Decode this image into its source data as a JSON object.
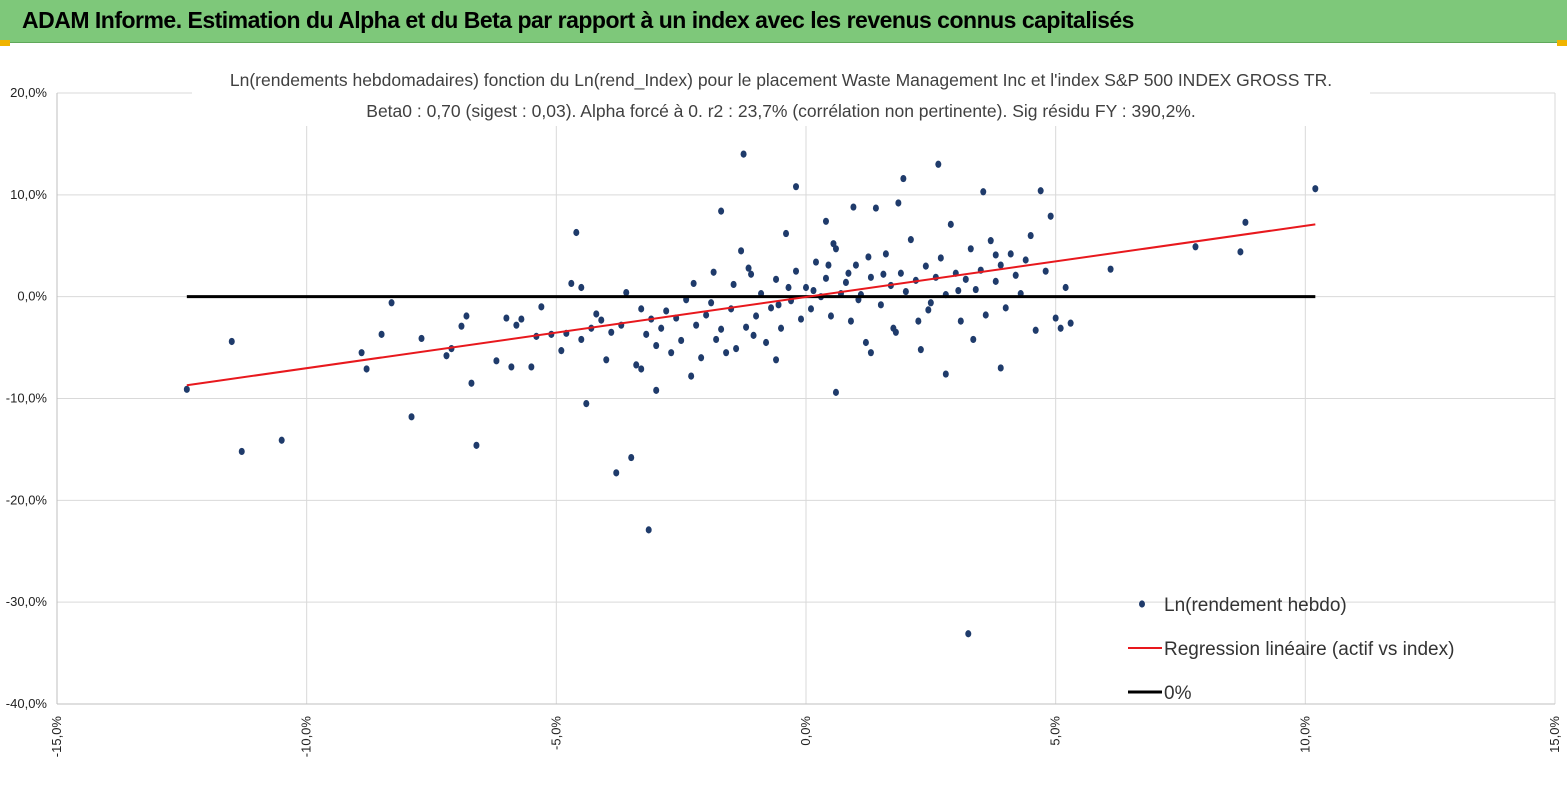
{
  "banner": {
    "title": "ADAM Informe. Estimation du Alpha et du Beta par rapport à un index avec les revenus connus capitalisés"
  },
  "colors": {
    "banner_bg": "#7ec87a",
    "points": "#1f3b6b",
    "regression": "#e8181d",
    "zero_line": "#000000",
    "grid": "#d9d9d9"
  },
  "chart_data": {
    "type": "scatter",
    "title": "Ln(rendements hebdomadaires) fonction du Ln(rend_Index) pour le placement Waste Management Inc et l'index S&P 500 INDEX GROSS TR.",
    "subtitle": "Beta0 : 0,70 (sigest : 0,03). Alpha forcé à 0. r2 : 23,7% (corrélation non pertinente). Sig résidu FY : 390,2%.",
    "xlim": [
      -0.15,
      0.15
    ],
    "ylim": [
      -0.4,
      0.2
    ],
    "x_ticks": [
      "-15,0%",
      "-10,0%",
      "-5,0%",
      "0,0%",
      "5,0%",
      "10,0%",
      "15,0%"
    ],
    "x_tick_values": [
      -0.15,
      -0.1,
      -0.05,
      0.0,
      0.05,
      0.1,
      0.15
    ],
    "y_ticks": [
      "20,0%",
      "10,0%",
      "0,0%",
      "-10,0%",
      "-20,0%",
      "-30,0%",
      "-40,0%"
    ],
    "y_tick_values": [
      0.2,
      0.1,
      0.0,
      -0.1,
      -0.2,
      -0.3,
      -0.4
    ],
    "grid": true,
    "legend_position": "bottom-right",
    "series": [
      {
        "name": "Ln(rendement hebdo)",
        "kind": "scatter",
        "points": [
          [
            -0.124,
            -0.091
          ],
          [
            -0.115,
            -0.044
          ],
          [
            -0.113,
            -0.152
          ],
          [
            -0.105,
            -0.141
          ],
          [
            -0.089,
            -0.055
          ],
          [
            -0.088,
            -0.071
          ],
          [
            -0.085,
            -0.037
          ],
          [
            -0.083,
            -0.006
          ],
          [
            -0.079,
            -0.118
          ],
          [
            -0.077,
            -0.041
          ],
          [
            -0.072,
            -0.058
          ],
          [
            -0.071,
            -0.051
          ],
          [
            -0.069,
            -0.029
          ],
          [
            -0.068,
            -0.019
          ],
          [
            -0.067,
            -0.085
          ],
          [
            -0.066,
            -0.146
          ],
          [
            -0.062,
            -0.063
          ],
          [
            -0.06,
            -0.021
          ],
          [
            -0.059,
            -0.069
          ],
          [
            -0.058,
            -0.028
          ],
          [
            -0.057,
            -0.022
          ],
          [
            -0.055,
            -0.069
          ],
          [
            -0.054,
            -0.039
          ],
          [
            -0.053,
            -0.01
          ],
          [
            -0.051,
            -0.037
          ],
          [
            -0.049,
            -0.053
          ],
          [
            -0.048,
            -0.036
          ],
          [
            -0.047,
            0.013
          ],
          [
            -0.046,
            0.063
          ],
          [
            -0.045,
            -0.042
          ],
          [
            -0.045,
            0.009
          ],
          [
            -0.044,
            -0.105
          ],
          [
            -0.043,
            -0.031
          ],
          [
            -0.042,
            -0.017
          ],
          [
            -0.041,
            -0.023
          ],
          [
            -0.04,
            -0.062
          ],
          [
            -0.039,
            -0.035
          ],
          [
            -0.038,
            -0.173
          ],
          [
            -0.037,
            -0.028
          ],
          [
            -0.036,
            0.004
          ],
          [
            -0.035,
            -0.158
          ],
          [
            -0.034,
            -0.067
          ],
          [
            -0.033,
            -0.071
          ],
          [
            -0.033,
            -0.012
          ],
          [
            -0.032,
            -0.037
          ],
          [
            -0.031,
            -0.022
          ],
          [
            -0.03,
            -0.048
          ],
          [
            -0.03,
            -0.092
          ],
          [
            -0.029,
            -0.031
          ],
          [
            -0.028,
            -0.014
          ],
          [
            -0.027,
            -0.055
          ],
          [
            -0.026,
            -0.021
          ],
          [
            -0.025,
            -0.043
          ],
          [
            -0.024,
            -0.003
          ],
          [
            -0.023,
            -0.078
          ],
          [
            -0.022,
            -0.028
          ],
          [
            -0.021,
            -0.06
          ],
          [
            -0.02,
            -0.018
          ],
          [
            -0.019,
            -0.006
          ],
          [
            -0.018,
            -0.042
          ],
          [
            -0.017,
            0.084
          ],
          [
            -0.017,
            -0.032
          ],
          [
            -0.016,
            -0.055
          ],
          [
            -0.015,
            -0.012
          ],
          [
            -0.014,
            -0.051
          ],
          [
            -0.013,
            0.045
          ],
          [
            -0.012,
            -0.03
          ],
          [
            -0.011,
            0.022
          ],
          [
            -0.01,
            -0.019
          ],
          [
            -0.009,
            0.003
          ],
          [
            -0.008,
            -0.045
          ],
          [
            -0.007,
            -0.011
          ],
          [
            -0.006,
            0.017
          ],
          [
            -0.005,
            -0.031
          ],
          [
            -0.004,
            0.062
          ],
          [
            -0.003,
            -0.004
          ],
          [
            -0.002,
            0.025
          ],
          [
            -0.001,
            -0.022
          ],
          [
            0.0,
            0.009
          ],
          [
            0.001,
            -0.012
          ],
          [
            0.002,
            0.034
          ],
          [
            0.003,
            0.0
          ],
          [
            0.004,
            0.018
          ],
          [
            0.005,
            -0.019
          ],
          [
            0.006,
            0.047
          ],
          [
            0.007,
            0.003
          ],
          [
            0.008,
            0.014
          ],
          [
            0.009,
            -0.024
          ],
          [
            0.01,
            0.031
          ],
          [
            0.011,
            0.002
          ],
          [
            0.012,
            -0.045
          ],
          [
            0.013,
            0.019
          ],
          [
            0.014,
            0.087
          ],
          [
            0.015,
            -0.008
          ],
          [
            0.016,
            0.042
          ],
          [
            0.017,
            0.011
          ],
          [
            0.018,
            -0.035
          ],
          [
            0.019,
            0.023
          ],
          [
            0.02,
            0.005
          ],
          [
            0.021,
            0.056
          ],
          [
            0.022,
            0.016
          ],
          [
            0.023,
            -0.052
          ],
          [
            0.024,
            0.03
          ],
          [
            0.025,
            -0.006
          ],
          [
            0.026,
            0.019
          ],
          [
            0.027,
            0.038
          ],
          [
            0.028,
            0.002
          ],
          [
            0.029,
            0.071
          ],
          [
            0.03,
            0.023
          ],
          [
            0.031,
            -0.024
          ],
          [
            0.032,
            0.017
          ],
          [
            0.033,
            0.047
          ],
          [
            0.034,
            0.007
          ],
          [
            0.035,
            0.026
          ],
          [
            0.036,
            -0.018
          ],
          [
            0.037,
            0.055
          ],
          [
            0.038,
            0.015
          ],
          [
            0.039,
            0.031
          ],
          [
            0.04,
            -0.011
          ],
          [
            0.041,
            0.042
          ],
          [
            0.042,
            0.021
          ],
          [
            0.043,
            0.003
          ],
          [
            0.044,
            0.036
          ],
          [
            0.045,
            0.06
          ],
          [
            0.046,
            -0.033
          ],
          [
            0.047,
            0.104
          ],
          [
            0.048,
            0.025
          ],
          [
            0.049,
            0.079
          ],
          [
            0.05,
            -0.021
          ],
          [
            0.051,
            -0.031
          ],
          [
            0.052,
            0.009
          ],
          [
            0.053,
            -0.026
          ],
          [
            -0.0105,
            -0.038
          ],
          [
            -0.0115,
            0.028
          ],
          [
            0.006,
            -0.094
          ],
          [
            0.004,
            0.074
          ],
          [
            0.0095,
            0.088
          ],
          [
            -0.002,
            0.108
          ],
          [
            -0.0125,
            0.14
          ],
          [
            0.0085,
            0.023
          ],
          [
            0.0195,
            0.116
          ],
          [
            0.0265,
            0.13
          ],
          [
            0.0185,
            0.092
          ],
          [
            0.0355,
            0.103
          ],
          [
            0.0325,
            -0.331
          ],
          [
            -0.0315,
            -0.229
          ],
          [
            0.028,
            -0.076
          ],
          [
            0.039,
            -0.07
          ],
          [
            0.038,
            0.041
          ],
          [
            0.061,
            0.027
          ],
          [
            0.078,
            0.049
          ],
          [
            0.087,
            0.044
          ],
          [
            0.088,
            0.073
          ],
          [
            0.102,
            0.106
          ],
          [
            0.013,
            -0.055
          ],
          [
            -0.006,
            -0.062
          ],
          [
            0.0045,
            0.031
          ],
          [
            -0.0035,
            0.009
          ],
          [
            0.0105,
            -0.003
          ],
          [
            0.0155,
            0.022
          ],
          [
            -0.0145,
            0.012
          ],
          [
            -0.0055,
            -0.008
          ],
          [
            0.0015,
            0.006
          ],
          [
            0.0125,
            0.039
          ],
          [
            0.0225,
            -0.024
          ],
          [
            0.0055,
            0.052
          ],
          [
            -0.0225,
            0.013
          ],
          [
            0.0305,
            0.006
          ],
          [
            0.0335,
            -0.042
          ],
          [
            0.0245,
            -0.013
          ],
          [
            -0.0185,
            0.024
          ],
          [
            0.0175,
            -0.031
          ]
        ]
      },
      {
        "name": "Regression linéaire (actif vs index)",
        "kind": "line",
        "points": [
          [
            -0.124,
            -0.087
          ],
          [
            0.102,
            0.071
          ]
        ]
      },
      {
        "name": "0%",
        "kind": "line",
        "points": [
          [
            -0.124,
            0.0
          ],
          [
            0.102,
            0.0
          ]
        ]
      }
    ]
  }
}
